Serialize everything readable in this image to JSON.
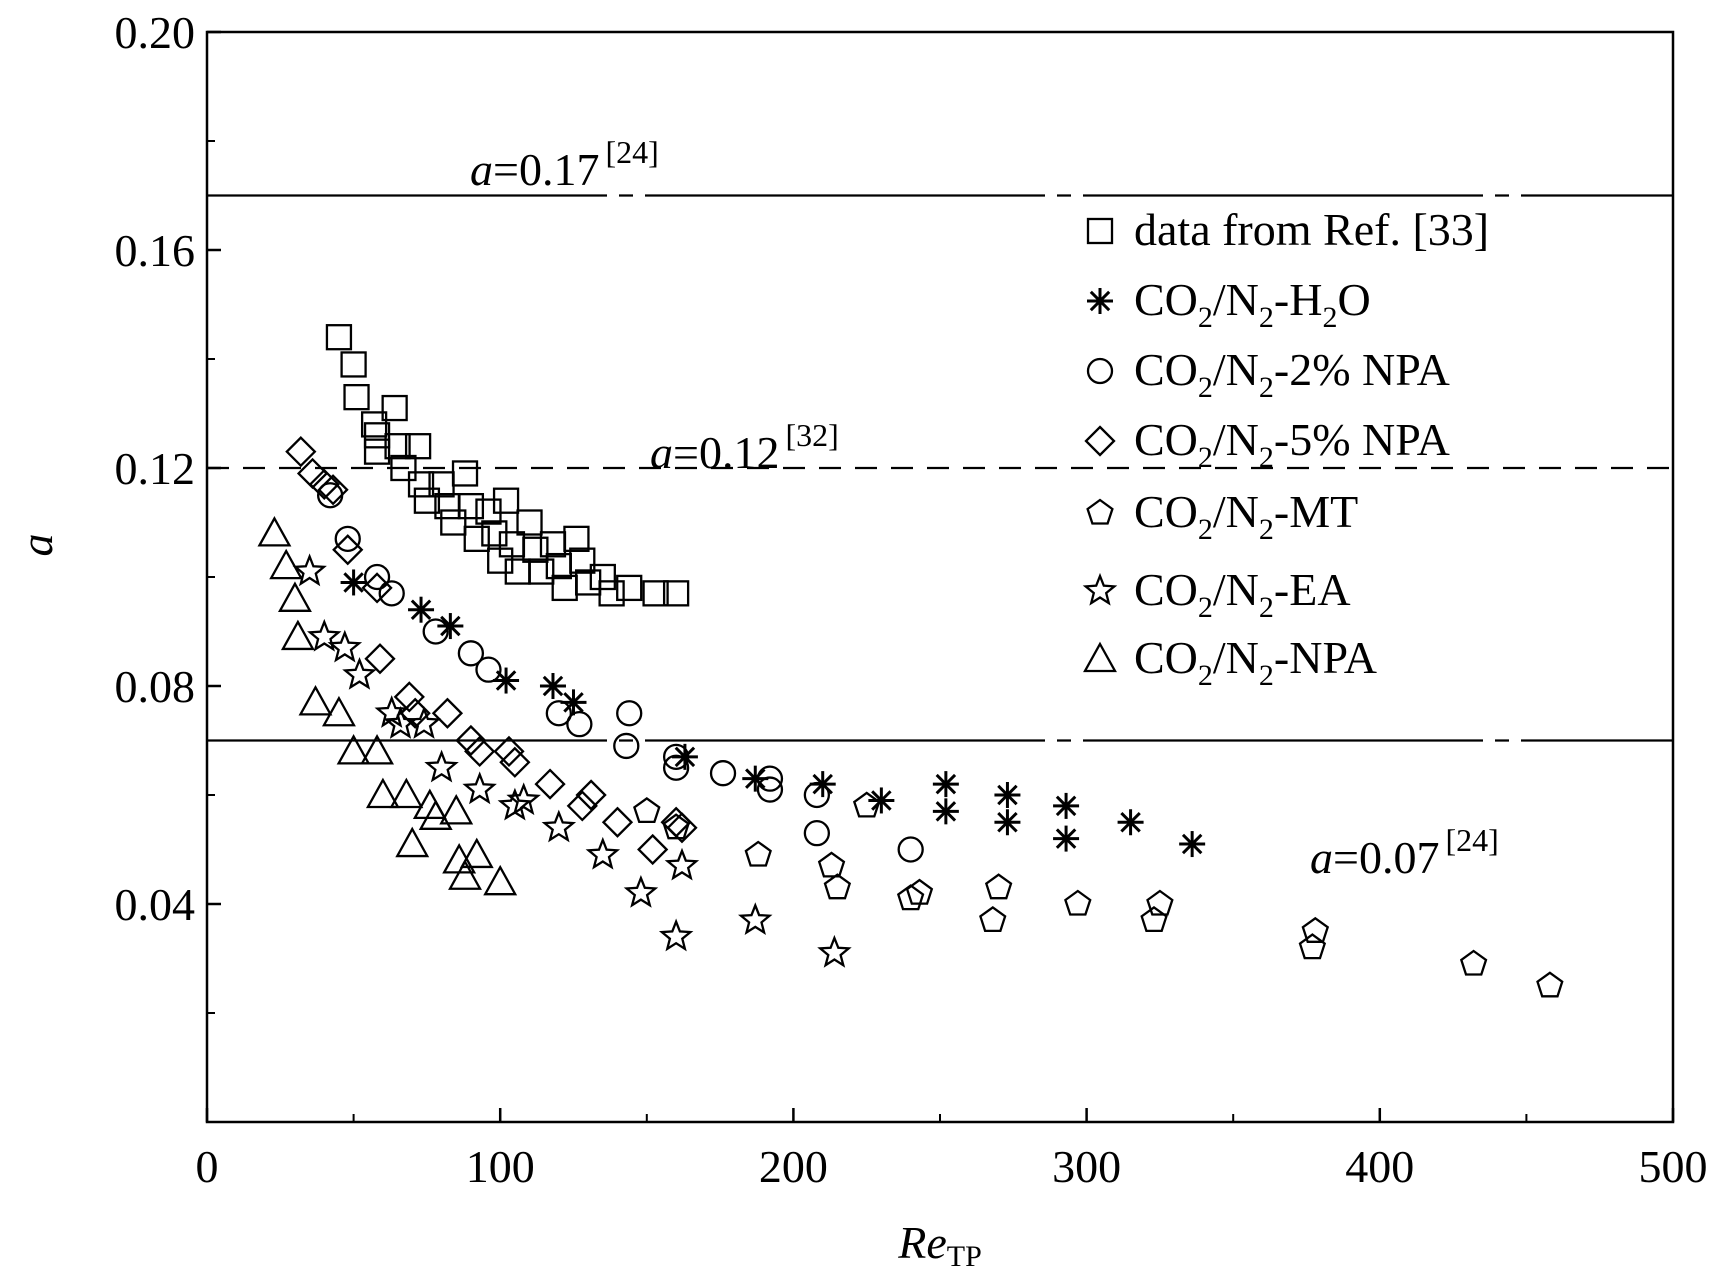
{
  "chart_data": {
    "type": "scatter",
    "xlabel": "Re",
    "xlabel_sub": "TP",
    "ylabel": "a",
    "xlim": [
      0,
      500
    ],
    "ylim": [
      0.0,
      0.2
    ],
    "x_ticks": [
      "0",
      "100",
      "200",
      "300",
      "400",
      "500"
    ],
    "y_ticks": [
      "0.04",
      "0.08",
      "0.12",
      "0.16",
      "0.20"
    ],
    "reference_lines": [
      {
        "y": 0.17,
        "style": "dash-dot",
        "label_var": "a",
        "label_val": "=0.17",
        "label_ref": "[24]"
      },
      {
        "y": 0.12,
        "style": "dashed",
        "label_var": "a",
        "label_val": "=0.12",
        "label_ref": "[32]"
      },
      {
        "y": 0.07,
        "style": "dash-dot",
        "label_var": "a",
        "label_val": "=0.07",
        "label_ref": "[24]"
      }
    ],
    "legend_position": "top-right",
    "series": [
      {
        "name": "data from Ref. [33]",
        "marker": "square",
        "points": [
          [
            45,
            0.144
          ],
          [
            50,
            0.139
          ],
          [
            51,
            0.133
          ],
          [
            57,
            0.128
          ],
          [
            58,
            0.126
          ],
          [
            58,
            0.123
          ],
          [
            64,
            0.131
          ],
          [
            65,
            0.124
          ],
          [
            67,
            0.12
          ],
          [
            72,
            0.124
          ],
          [
            73,
            0.117
          ],
          [
            75,
            0.114
          ],
          [
            80,
            0.117
          ],
          [
            82,
            0.113
          ],
          [
            84,
            0.11
          ],
          [
            88,
            0.119
          ],
          [
            90,
            0.113
          ],
          [
            92,
            0.107
          ],
          [
            96,
            0.112
          ],
          [
            98,
            0.108
          ],
          [
            100,
            0.103
          ],
          [
            102,
            0.114
          ],
          [
            104,
            0.106
          ],
          [
            106,
            0.101
          ],
          [
            110,
            0.11
          ],
          [
            112,
            0.105
          ],
          [
            114,
            0.101
          ],
          [
            118,
            0.106
          ],
          [
            120,
            0.102
          ],
          [
            122,
            0.098
          ],
          [
            126,
            0.107
          ],
          [
            128,
            0.103
          ],
          [
            130,
            0.099
          ],
          [
            135,
            0.1
          ],
          [
            138,
            0.097
          ],
          [
            144,
            0.098
          ],
          [
            153,
            0.097
          ],
          [
            160,
            0.097
          ]
        ]
      },
      {
        "name": "CO2/N2-H2O",
        "marker": "asterisk",
        "points": [
          [
            50,
            0.099
          ],
          [
            73,
            0.094
          ],
          [
            83,
            0.091
          ],
          [
            102,
            0.081
          ],
          [
            118,
            0.08
          ],
          [
            125,
            0.077
          ],
          [
            163,
            0.067
          ],
          [
            187,
            0.063
          ],
          [
            210,
            0.062
          ],
          [
            230,
            0.059
          ],
          [
            252,
            0.062
          ],
          [
            252,
            0.057
          ],
          [
            273,
            0.06
          ],
          [
            273,
            0.055
          ],
          [
            293,
            0.058
          ],
          [
            293,
            0.052
          ],
          [
            315,
            0.055
          ],
          [
            336,
            0.051
          ]
        ]
      },
      {
        "name": "CO2/N2-2% NPA",
        "marker": "circle",
        "points": [
          [
            42,
            0.115
          ],
          [
            48,
            0.107
          ],
          [
            58,
            0.1
          ],
          [
            63,
            0.097
          ],
          [
            78,
            0.09
          ],
          [
            90,
            0.086
          ],
          [
            96,
            0.083
          ],
          [
            120,
            0.075
          ],
          [
            127,
            0.073
          ],
          [
            144,
            0.075
          ],
          [
            143,
            0.069
          ],
          [
            160,
            0.067
          ],
          [
            160,
            0.065
          ],
          [
            176,
            0.064
          ],
          [
            192,
            0.063
          ],
          [
            192,
            0.061
          ],
          [
            208,
            0.06
          ],
          [
            208,
            0.053
          ],
          [
            240,
            0.05
          ]
        ]
      },
      {
        "name": "CO2/N2-5% NPA",
        "marker": "diamond",
        "points": [
          [
            32,
            0.123
          ],
          [
            36,
            0.119
          ],
          [
            40,
            0.117
          ],
          [
            43,
            0.116
          ],
          [
            48,
            0.105
          ],
          [
            58,
            0.098
          ],
          [
            59,
            0.085
          ],
          [
            69,
            0.078
          ],
          [
            71,
            0.075
          ],
          [
            82,
            0.075
          ],
          [
            90,
            0.07
          ],
          [
            93,
            0.068
          ],
          [
            103,
            0.068
          ],
          [
            105,
            0.066
          ],
          [
            117,
            0.062
          ],
          [
            128,
            0.058
          ],
          [
            131,
            0.06
          ],
          [
            140,
            0.055
          ],
          [
            152,
            0.05
          ],
          [
            160,
            0.055
          ],
          [
            162,
            0.054
          ]
        ]
      },
      {
        "name": "CO2/N2-MT",
        "marker": "pentagon",
        "points": [
          [
            150,
            0.057
          ],
          [
            160,
            0.054
          ],
          [
            188,
            0.049
          ],
          [
            213,
            0.047
          ],
          [
            215,
            0.043
          ],
          [
            225,
            0.058
          ],
          [
            240,
            0.041
          ],
          [
            243,
            0.042
          ],
          [
            268,
            0.037
          ],
          [
            270,
            0.043
          ],
          [
            297,
            0.04
          ],
          [
            323,
            0.037
          ],
          [
            325,
            0.04
          ],
          [
            377,
            0.032
          ],
          [
            378,
            0.035
          ],
          [
            432,
            0.029
          ],
          [
            458,
            0.025
          ]
        ]
      },
      {
        "name": "CO2/N2-EA",
        "marker": "star",
        "points": [
          [
            35,
            0.101
          ],
          [
            40,
            0.089
          ],
          [
            47,
            0.087
          ],
          [
            52,
            0.082
          ],
          [
            63,
            0.075
          ],
          [
            66,
            0.073
          ],
          [
            74,
            0.073
          ],
          [
            80,
            0.065
          ],
          [
            93,
            0.061
          ],
          [
            105,
            0.058
          ],
          [
            108,
            0.059
          ],
          [
            120,
            0.054
          ],
          [
            135,
            0.049
          ],
          [
            148,
            0.042
          ],
          [
            160,
            0.034
          ],
          [
            162,
            0.047
          ],
          [
            187,
            0.037
          ],
          [
            214,
            0.031
          ]
        ]
      },
      {
        "name": "CO2/N2-NPA",
        "marker": "triangle",
        "points": [
          [
            23,
            0.108
          ],
          [
            27,
            0.102
          ],
          [
            30,
            0.096
          ],
          [
            31,
            0.089
          ],
          [
            37,
            0.077
          ],
          [
            45,
            0.075
          ],
          [
            50,
            0.068
          ],
          [
            58,
            0.068
          ],
          [
            60,
            0.06
          ],
          [
            68,
            0.06
          ],
          [
            70,
            0.051
          ],
          [
            76,
            0.058
          ],
          [
            78,
            0.056
          ],
          [
            85,
            0.057
          ],
          [
            86,
            0.048
          ],
          [
            88,
            0.045
          ],
          [
            92,
            0.049
          ],
          [
            100,
            0.044
          ]
        ]
      }
    ],
    "legend_labels": [
      {
        "series": 0,
        "parts": [
          [
            "n",
            "data from Ref. [33]"
          ]
        ]
      },
      {
        "series": 1,
        "parts": [
          [
            "n",
            "CO"
          ],
          [
            "s",
            "2"
          ],
          [
            "n",
            "/N"
          ],
          [
            "s",
            "2"
          ],
          [
            "n",
            "-H"
          ],
          [
            "s",
            "2"
          ],
          [
            "n",
            "O"
          ]
        ]
      },
      {
        "series": 2,
        "parts": [
          [
            "n",
            "CO"
          ],
          [
            "s",
            "2"
          ],
          [
            "n",
            "/N"
          ],
          [
            "s",
            "2"
          ],
          [
            "n",
            "-2% NPA"
          ]
        ]
      },
      {
        "series": 3,
        "parts": [
          [
            "n",
            "CO"
          ],
          [
            "s",
            "2"
          ],
          [
            "n",
            "/N"
          ],
          [
            "s",
            "2"
          ],
          [
            "n",
            "-5% NPA"
          ]
        ]
      },
      {
        "series": 4,
        "parts": [
          [
            "n",
            "CO"
          ],
          [
            "s",
            "2"
          ],
          [
            "n",
            "/N"
          ],
          [
            "s",
            "2"
          ],
          [
            "n",
            "-MT"
          ]
        ]
      },
      {
        "series": 5,
        "parts": [
          [
            "n",
            "CO"
          ],
          [
            "s",
            "2"
          ],
          [
            "n",
            "/N"
          ],
          [
            "s",
            "2"
          ],
          [
            "n",
            "-EA"
          ]
        ]
      },
      {
        "series": 6,
        "parts": [
          [
            "n",
            "CO"
          ],
          [
            "s",
            "2"
          ],
          [
            "n",
            "/N"
          ],
          [
            "s",
            "2"
          ],
          [
            "n",
            "-NPA"
          ]
        ]
      }
    ]
  }
}
